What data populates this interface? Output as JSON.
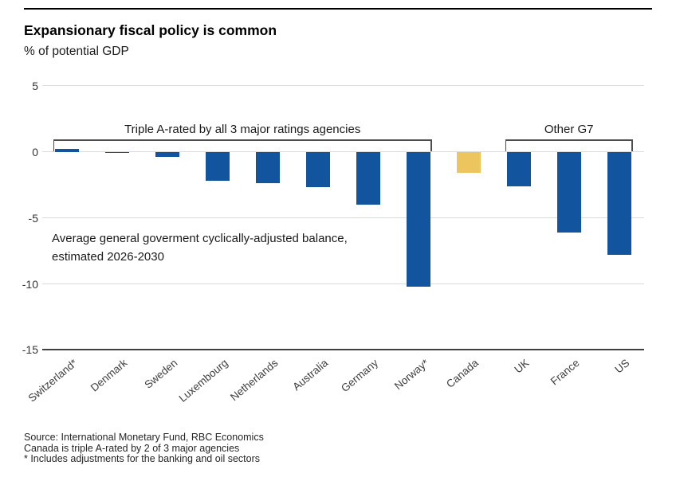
{
  "header": {
    "title": "Expansionary fiscal policy is common",
    "subtitle": "% of potential GDP"
  },
  "chart_data": {
    "type": "bar",
    "title": "Expansionary fiscal policy is common",
    "subtitle": "% of potential GDP",
    "categories": [
      "Switzerland*",
      "Denmark",
      "Sweden",
      "Luxembourg",
      "Netherlands",
      "Australia",
      "Germany",
      "Norway*",
      "Canada",
      "UK",
      "France",
      "US"
    ],
    "values": [
      0.2,
      -0.1,
      -0.4,
      -2.2,
      -2.4,
      -2.7,
      -4.0,
      -10.2,
      -1.6,
      -2.6,
      -6.1,
      -7.8
    ],
    "bar_colors": {
      "default": "#12559E",
      "highlight": "#ECC55F",
      "highlight_index": 8
    },
    "xlabel": "",
    "ylabel": "% of potential GDP",
    "yticks": [
      5,
      0,
      -5,
      -10,
      -15
    ],
    "ylim": [
      -15,
      5
    ],
    "grid": true,
    "legend": "none",
    "brackets": [
      {
        "label": "Triple A-rated by all 3 major ratings agencies",
        "from_index": 0,
        "to_index": 7
      },
      {
        "label": "Other G7",
        "from_index": 9,
        "to_index": 11
      }
    ],
    "annotation": {
      "line1": "Average general goverment cyclically-adjusted balance,",
      "line2": "estimated 2026-2030"
    }
  },
  "footnotes": [
    "Source: International Monetary Fund, RBC Economics",
    "Canada is triple A-rated by 2 of 3 major agencies",
    "* Includes adjustments for the banking and oil sectors"
  ],
  "colors": {
    "bar_blue": "#12559E",
    "bar_gold": "#ECC55F",
    "gridline": "#dadada",
    "axis_line": "#404040",
    "top_rule": "#000000"
  }
}
